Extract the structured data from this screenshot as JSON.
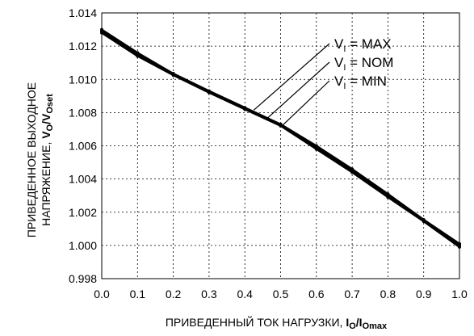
{
  "chart_data": {
    "type": "line",
    "xlabel": {
      "text": "ПРИВЕДЕННЫЙ ТОК НАГРУЗКИ, ",
      "bold": "I",
      "bold_sub1": "O",
      "bold_slash": "/I",
      "bold_sub2": "Omax"
    },
    "ylabel": {
      "line1": "ПРИВЕДЕННОЕ ВЫХОДНОЕ",
      "line2": "НАПРЯЖЕНИЕ, ",
      "bold": "V",
      "bold_sub1": "O",
      "bold_slash": "/V",
      "bold_sub2": "Oset"
    },
    "xlim": [
      0.0,
      1.0
    ],
    "ylim": [
      0.998,
      1.014
    ],
    "x_ticks": [
      "0.0",
      "0.1",
      "0.2",
      "0.3",
      "0.4",
      "0.5",
      "0.6",
      "0.7",
      "0.8",
      "0.9",
      "1.0"
    ],
    "y_ticks": [
      "0.998",
      "1.000",
      "1.002",
      "1.004",
      "1.006",
      "1.008",
      "1.010",
      "1.012",
      "1.014"
    ],
    "grid": true,
    "x": [
      0.0,
      0.1,
      0.2,
      0.3,
      0.4,
      0.5,
      0.6,
      0.7,
      0.8,
      0.9,
      1.0
    ],
    "series": [
      {
        "name": "MAX",
        "values": [
          1.013,
          1.0116,
          1.01035,
          1.0093,
          1.0083,
          1.0073,
          1.006,
          1.0046,
          1.0031,
          1.00155,
          1.0001
        ]
      },
      {
        "name": "NOM",
        "values": [
          1.0129,
          1.0115,
          1.0103,
          1.00925,
          1.00825,
          1.00725,
          1.0059,
          1.0045,
          1.003,
          1.0015,
          1.0
        ]
      },
      {
        "name": "MIN",
        "values": [
          1.0128,
          1.0114,
          1.01025,
          1.0092,
          1.0082,
          1.0072,
          1.0058,
          1.0044,
          1.0029,
          1.00145,
          0.9999
        ]
      }
    ],
    "legend": {
      "placement": "top-right",
      "prefix": "V",
      "prefix_sub": "I",
      "equals": " = "
    },
    "line_color": "#000000",
    "grid_color": "#000000"
  }
}
